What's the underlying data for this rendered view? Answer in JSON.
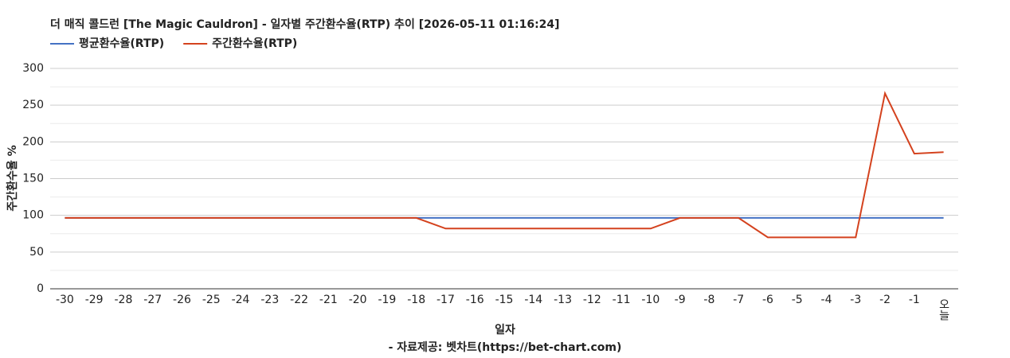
{
  "chart_data": {
    "type": "line",
    "title": "더 매직 콜드런 [The Magic Cauldron] - 일자별 주간환수율(RTP) 추이 [2026-05-11 01:16:24]",
    "x_label": "일자",
    "y_label": "주간환수율 %",
    "footer": "- 자료제공: 벳차트(https://bet-chart.com)",
    "categories": [
      "-30",
      "-29",
      "-28",
      "-27",
      "-26",
      "-25",
      "-24",
      "-23",
      "-22",
      "-21",
      "-20",
      "-19",
      "-18",
      "-17",
      "-16",
      "-15",
      "-14",
      "-13",
      "-12",
      "-11",
      "-10",
      "-9",
      "-8",
      "-7",
      "-6",
      "-5",
      "-4",
      "-3",
      "-2",
      "-1",
      "오늘"
    ],
    "series": [
      {
        "name": "평균환수율(RTP)",
        "color": "#4472c4",
        "values": [
          96.5,
          96.5,
          96.5,
          96.5,
          96.5,
          96.5,
          96.5,
          96.5,
          96.5,
          96.5,
          96.5,
          96.5,
          96.5,
          96.5,
          96.5,
          96.5,
          96.5,
          96.5,
          96.5,
          96.5,
          96.5,
          96.5,
          96.5,
          96.5,
          96.5,
          96.5,
          96.5,
          96.5,
          96.5,
          96.5,
          96.5
        ]
      },
      {
        "name": "주간환수율(RTP)",
        "color": "#d4421e",
        "values": [
          96.5,
          96.5,
          96.5,
          96.5,
          96.5,
          96.5,
          96.5,
          96.5,
          96.5,
          96.5,
          96.5,
          96.5,
          96.5,
          82,
          82,
          82,
          82,
          82,
          82,
          82,
          82,
          96.5,
          96.5,
          96.5,
          70,
          70,
          70,
          70,
          266,
          184,
          186
        ]
      }
    ],
    "ylim": [
      0,
      300
    ],
    "yticks": [
      0,
      50,
      100,
      150,
      200,
      250,
      300
    ],
    "grid": true
  }
}
